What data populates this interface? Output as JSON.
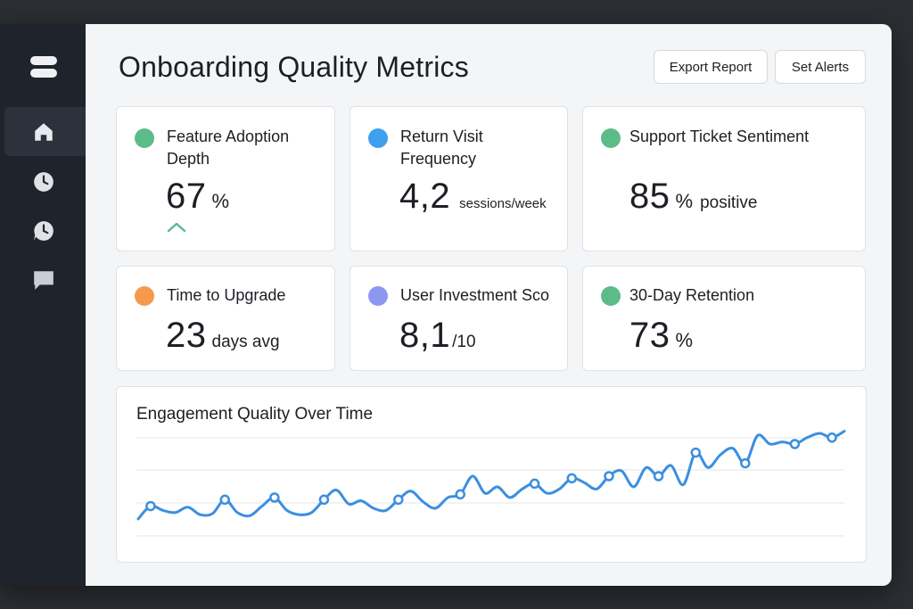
{
  "header": {
    "title": "Onboarding Quality Metrics",
    "export_label": "Export Report",
    "alerts_label": "Set Alerts"
  },
  "sidebar": {
    "items": [
      {
        "icon": "home-icon",
        "active": true
      },
      {
        "icon": "clock-icon",
        "active": false
      },
      {
        "icon": "history-icon",
        "active": false
      },
      {
        "icon": "chat-icon",
        "active": false
      }
    ]
  },
  "metrics": [
    {
      "label": "Feature Adoption Depth",
      "value": "67",
      "unit": "%",
      "color": "#5dbb8a",
      "trend": "up"
    },
    {
      "label": "Return Visit Frequency",
      "value": "4,2",
      "unit": "sessions/week",
      "color": "#3fa0f0"
    },
    {
      "label": "Support Ticket Sentiment",
      "value": "85",
      "unit": "%",
      "unit2": "positive",
      "color": "#5dbb8a"
    },
    {
      "label": "Time to Upgrade",
      "value": "23",
      "unit": "days avg",
      "color": "#f59a4c"
    },
    {
      "label": "User Investment Sco",
      "value": "8,1",
      "unit": "/10",
      "color": "#8c98f0"
    },
    {
      "label": "30-Day Retention",
      "value": "73",
      "unit": "%",
      "color": "#5dbb8a"
    }
  ],
  "chart_data": {
    "type": "line",
    "title": "Engagement Quality Over Time",
    "color": "#3b8fe0",
    "grid": true,
    "ylim": [
      0,
      100
    ],
    "values": [
      10,
      22,
      18,
      16,
      21,
      14,
      15,
      28,
      16,
      13,
      22,
      30,
      18,
      14,
      16,
      28,
      37,
      24,
      27,
      20,
      18,
      28,
      36,
      26,
      20,
      30,
      33,
      50,
      34,
      40,
      30,
      38,
      43,
      34,
      38,
      48,
      44,
      38,
      50,
      55,
      40,
      58,
      50,
      60,
      42,
      72,
      58,
      70,
      76,
      62,
      88,
      80,
      82,
      80,
      86,
      90,
      86,
      92
    ],
    "marker_indices": [
      1,
      7,
      11,
      15,
      21,
      26,
      32,
      35,
      38,
      42,
      45,
      49,
      53,
      56
    ]
  }
}
